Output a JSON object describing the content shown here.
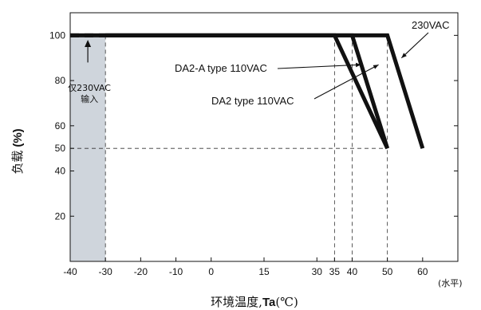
{
  "chart_data": {
    "type": "line",
    "title": "",
    "xlabel_prefix": "环境温度,",
    "xlabel_bold": "Ta",
    "xlabel_suffix": "(℃)",
    "xunit": "(水平)",
    "ylabel_prefix": "负载",
    "ylabel_bold": "(%)",
    "xlim": [
      -40,
      70
    ],
    "ylim": [
      0,
      110
    ],
    "x_ticks": [
      -40,
      -30,
      -20,
      -10,
      0,
      15,
      30,
      35,
      40,
      50,
      60
    ],
    "y_ticks": [
      20,
      40,
      50,
      60,
      80,
      100
    ],
    "series": [
      {
        "name": "230VAC",
        "x": [
          -40,
          50,
          60
        ],
        "y": [
          100,
          100,
          50
        ]
      },
      {
        "name": "DA2-A type 110VAC",
        "x": [
          -30,
          40,
          50
        ],
        "y": [
          100,
          100,
          50
        ]
      },
      {
        "name": "DA2 type 110VAC",
        "x": [
          -30,
          35,
          50
        ],
        "y": [
          100,
          100,
          50
        ]
      }
    ],
    "dashed_segment": {
      "x": [
        -40,
        -30
      ],
      "y": [
        100,
        100
      ]
    },
    "shaded_region": {
      "x": [
        -40,
        -30
      ],
      "label_line1": "仅230VAC",
      "label_line2": "输入"
    },
    "reference_lines": {
      "vertical": [
        -30,
        35,
        40,
        50
      ],
      "horizontal": [
        50
      ]
    },
    "grid": false
  }
}
